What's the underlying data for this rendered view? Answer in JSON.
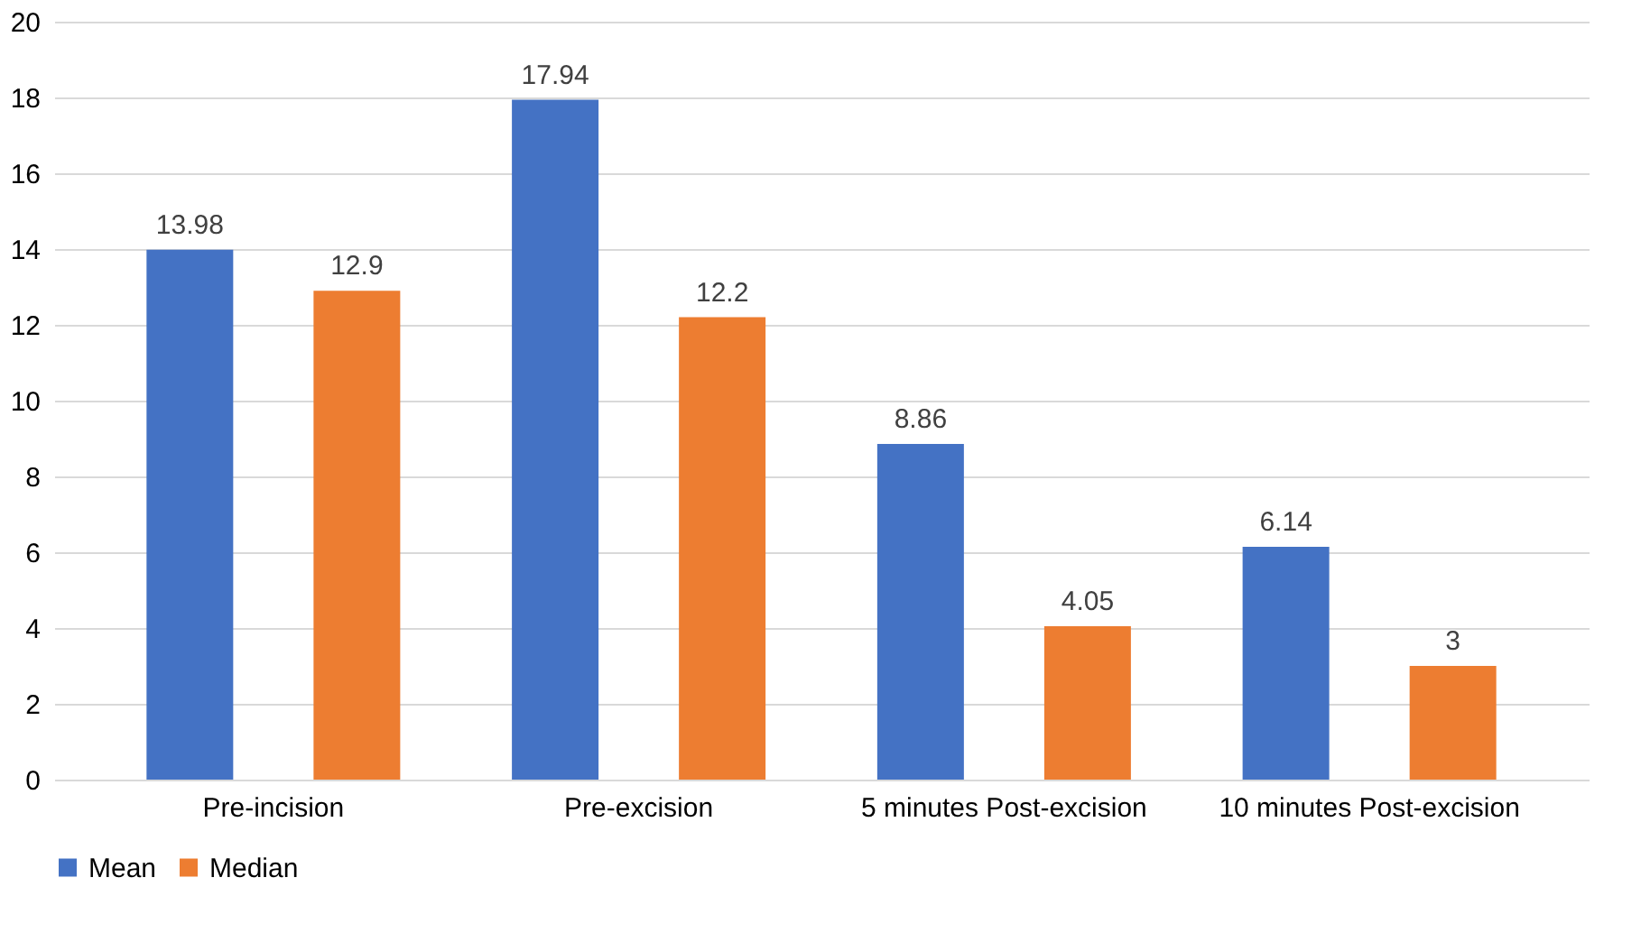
{
  "chart_data": {
    "type": "bar",
    "categories": [
      "Pre-incision",
      "Pre-excision",
      "5 minutes Post-excision",
      "10 minutes Post-excision"
    ],
    "series": [
      {
        "name": "Mean",
        "color": "#4472c4",
        "values": [
          13.98,
          17.94,
          8.86,
          6.14
        ]
      },
      {
        "name": "Median",
        "color": "#ed7d31",
        "values": [
          12.9,
          12.2,
          4.05,
          3
        ]
      }
    ],
    "ylim": [
      0,
      20
    ],
    "yticks": [
      0,
      2,
      4,
      6,
      8,
      10,
      12,
      14,
      16,
      18,
      20
    ],
    "grid": "y",
    "legend": "bottom",
    "data_labels": true
  }
}
